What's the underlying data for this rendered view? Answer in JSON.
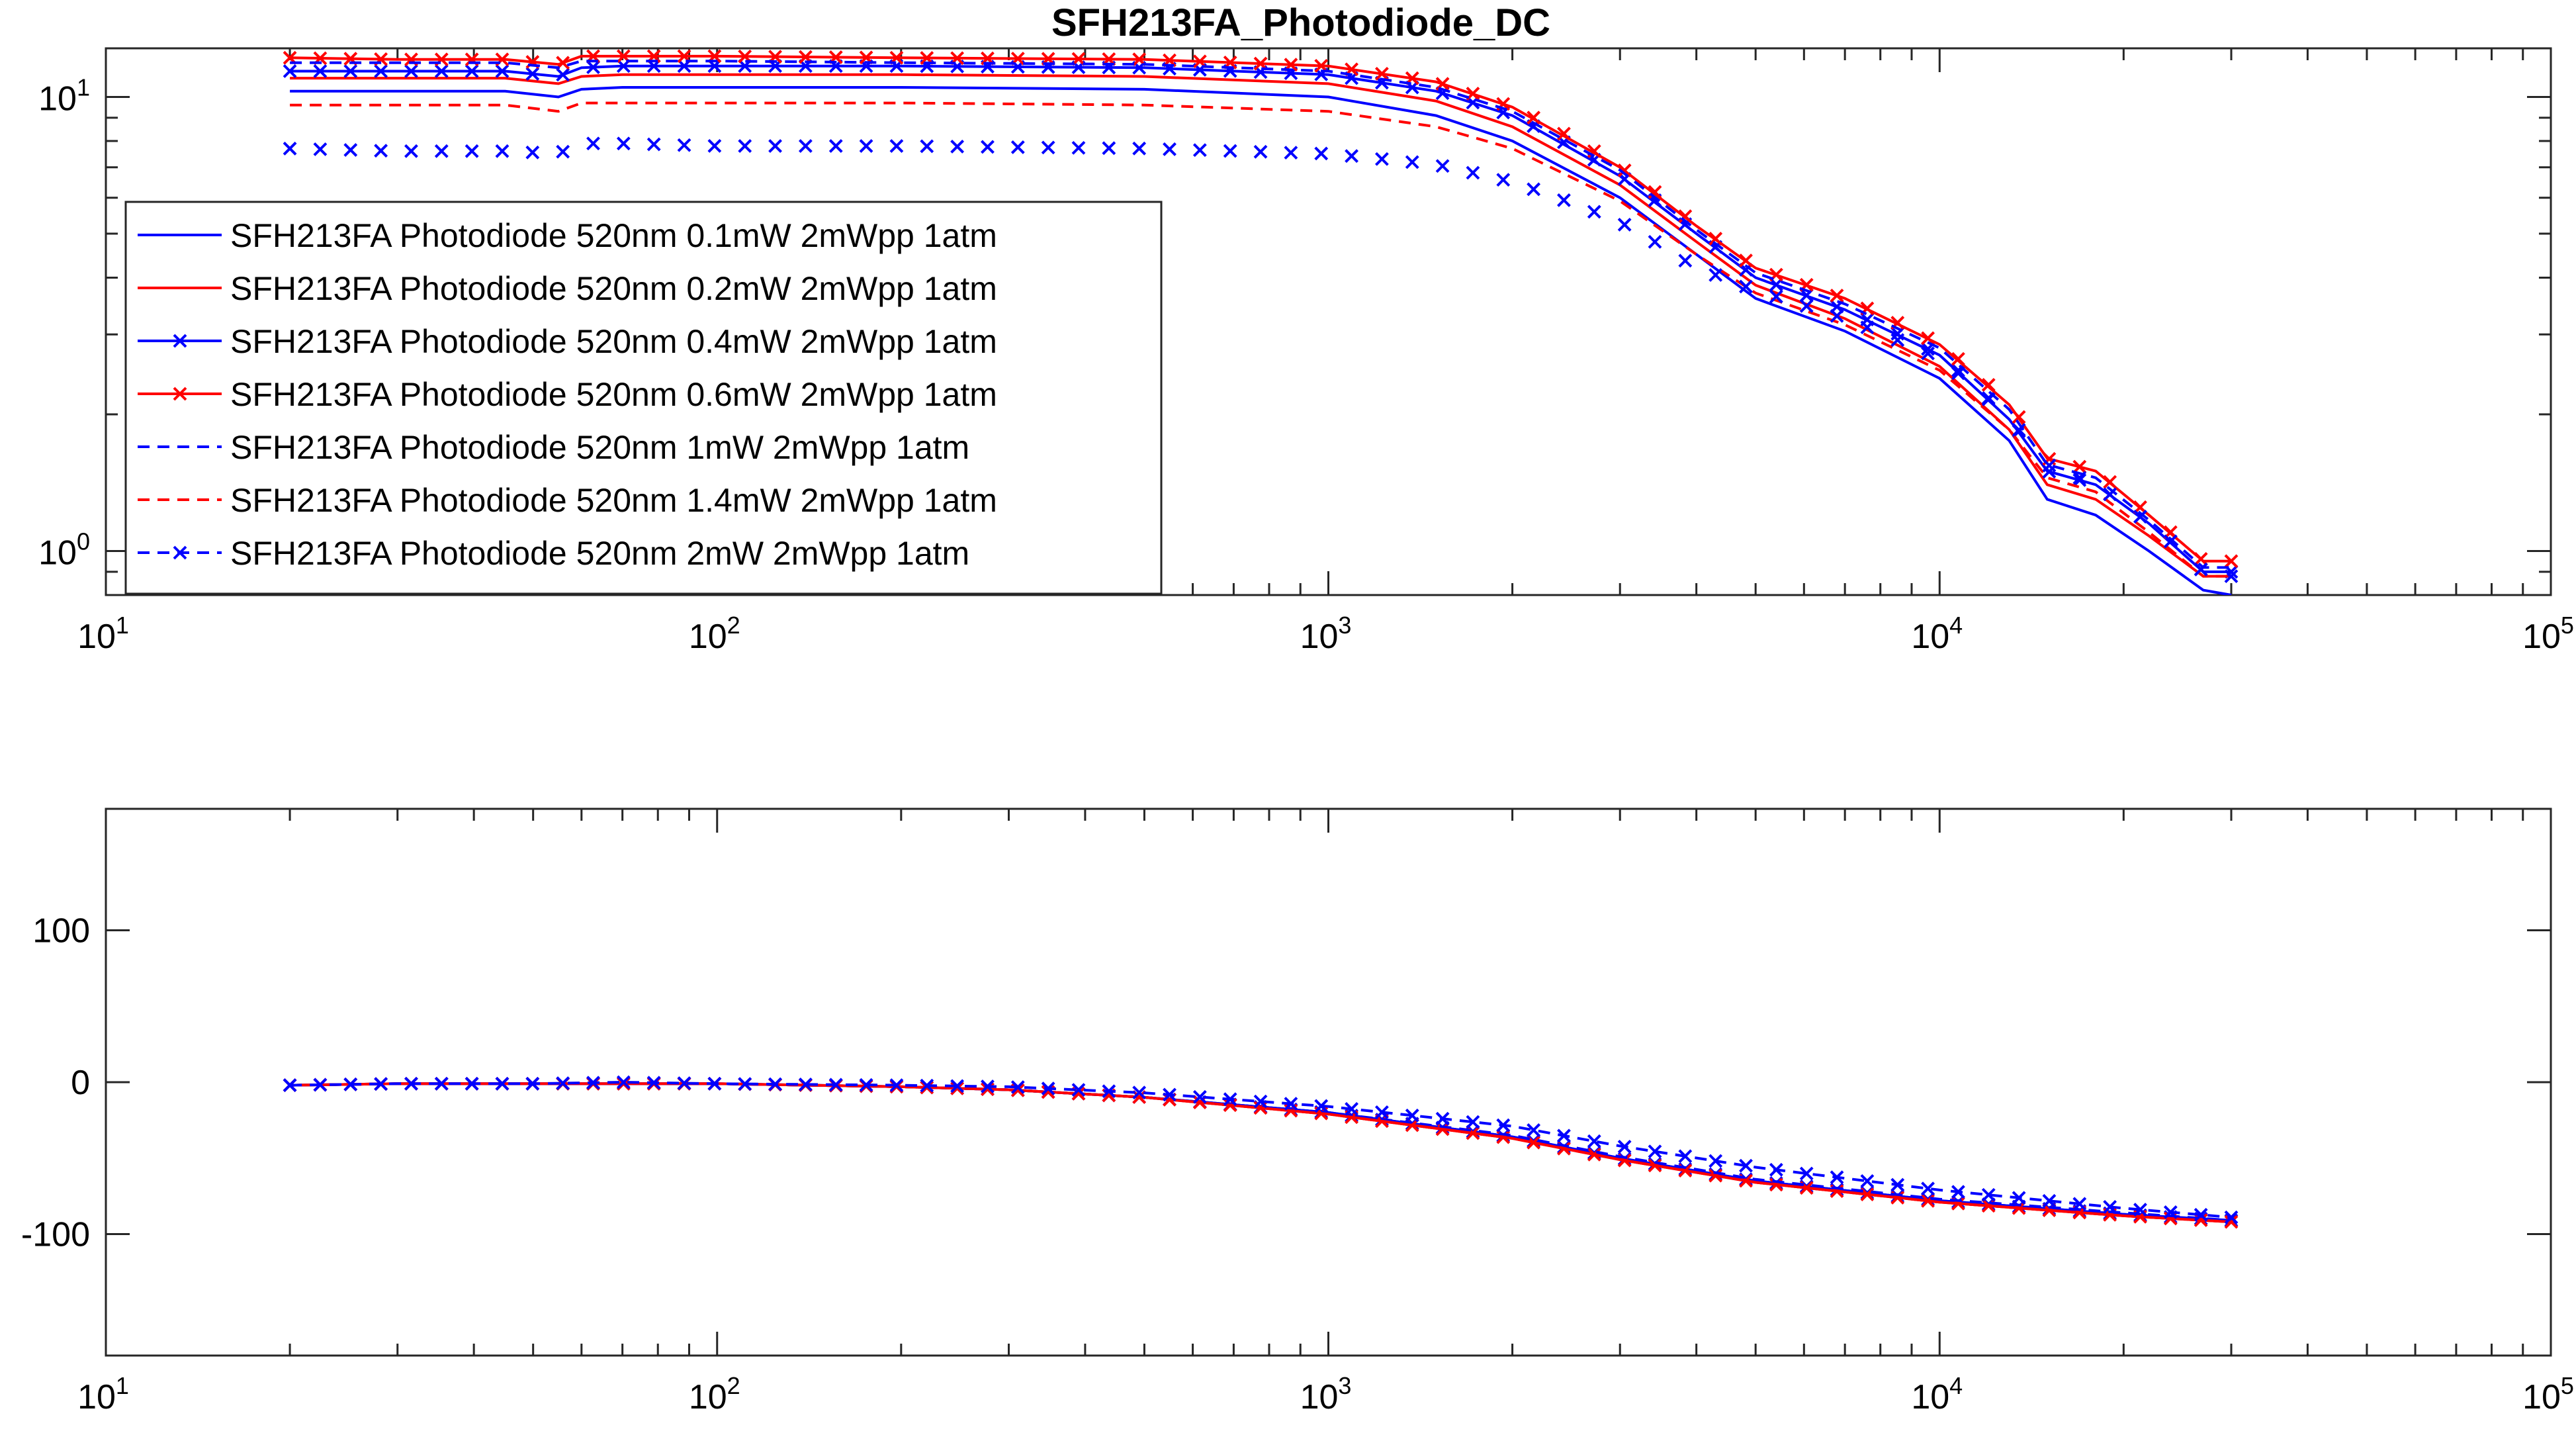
{
  "figure": {
    "title": "SFH213FA_Photodiode_DC"
  },
  "colors": {
    "blue": "#0000FF",
    "red": "#FF0000",
    "axis": "#262626"
  },
  "chart_data": [
    {
      "type": "line",
      "title": "SFH213FA_Photodiode_DC",
      "xscale": "log",
      "yscale": "log",
      "xlim": [
        10,
        100000
      ],
      "ylim": [
        0.8,
        12.8
      ],
      "x_ticks": [
        10,
        100,
        1000,
        10000,
        100000
      ],
      "x_tick_labels": [
        {
          "base": "10",
          "exp": "1"
        },
        {
          "base": "10",
          "exp": "2"
        },
        {
          "base": "10",
          "exp": "3"
        },
        {
          "base": "10",
          "exp": "4"
        },
        {
          "base": "10",
          "exp": "5"
        }
      ],
      "y_ticks": [
        1,
        10
      ],
      "y_tick_labels": [
        {
          "base": "10",
          "exp": "0"
        },
        {
          "base": "10",
          "exp": "1"
        }
      ],
      "grid": false,
      "legend_position": "left",
      "x": [
        20,
        30,
        45,
        55,
        60,
        70,
        100,
        200,
        500,
        1000,
        1500,
        2000,
        3000,
        4000,
        5000,
        7000,
        10000,
        13000,
        15000,
        18000,
        22000,
        27000,
        30000
      ],
      "series": [
        {
          "name": "SFH213FA Photodiode 520nm 0.1mW 2mWpp 1atm",
          "color": "#0000FF",
          "style": "solid",
          "marker": "none",
          "values": [
            10.3,
            10.3,
            10.3,
            10.0,
            10.4,
            10.5,
            10.5,
            10.5,
            10.4,
            10.0,
            9.1,
            8.0,
            6.0,
            4.5,
            3.6,
            3.05,
            2.4,
            1.75,
            1.3,
            1.2,
            1.0,
            0.82,
            0.8
          ]
        },
        {
          "name": "SFH213FA Photodiode 520nm 0.2mW 2mWpp 1atm",
          "color": "#FF0000",
          "style": "solid",
          "marker": "none",
          "values": [
            11.0,
            11.0,
            11.0,
            10.7,
            11.1,
            11.2,
            11.2,
            11.2,
            11.1,
            10.7,
            9.8,
            8.6,
            6.4,
            4.8,
            3.85,
            3.25,
            2.55,
            1.85,
            1.4,
            1.3,
            1.08,
            0.88,
            0.88
          ]
        },
        {
          "name": "SFH213FA Photodiode 520nm 0.4mW 2mWpp 1atm",
          "color": "#0000FF",
          "style": "solid",
          "marker": "x",
          "values": [
            11.4,
            11.4,
            11.4,
            11.1,
            11.6,
            11.7,
            11.7,
            11.7,
            11.6,
            11.2,
            10.3,
            9.1,
            6.7,
            5.0,
            4.0,
            3.4,
            2.7,
            1.95,
            1.5,
            1.4,
            1.15,
            0.9,
            0.9
          ]
        },
        {
          "name": "SFH213FA Photodiode 520nm 0.6mW 2mWpp 1atm",
          "color": "#FF0000",
          "style": "solid",
          "marker": "x",
          "values": [
            12.2,
            12.1,
            12.1,
            11.8,
            12.3,
            12.3,
            12.3,
            12.2,
            12.1,
            11.7,
            10.8,
            9.5,
            7.0,
            5.2,
            4.2,
            3.6,
            2.85,
            2.1,
            1.6,
            1.5,
            1.2,
            0.95,
            0.95
          ]
        },
        {
          "name": "SFH213FA Photodiode 520nm 1mW 2mWpp 1atm",
          "color": "#0000FF",
          "style": "dashed",
          "marker": "none",
          "values": [
            11.9,
            11.9,
            11.9,
            11.6,
            12.0,
            12.0,
            12.0,
            11.9,
            11.8,
            11.4,
            10.5,
            9.3,
            6.9,
            5.1,
            4.1,
            3.5,
            2.8,
            2.05,
            1.55,
            1.45,
            1.17,
            0.92,
            0.92
          ]
        },
        {
          "name": "SFH213FA Photodiode 520nm 1.4mW 2mWpp 1atm",
          "color": "#FF0000",
          "style": "dashed",
          "marker": "none",
          "values": [
            9.6,
            9.6,
            9.6,
            9.3,
            9.7,
            9.7,
            9.7,
            9.7,
            9.6,
            9.3,
            8.6,
            7.7,
            5.9,
            4.5,
            3.7,
            3.15,
            2.5,
            1.85,
            1.45,
            1.35,
            1.1,
            0.88,
            0.88
          ]
        },
        {
          "name": "SFH213FA Photodiode 520nm 2mW 2mWpp 1atm",
          "color": "#0000FF",
          "style": "dashed",
          "marker": "x",
          "values": [
            7.7,
            7.6,
            7.6,
            7.5,
            7.9,
            7.9,
            7.8,
            7.8,
            7.7,
            7.5,
            7.1,
            6.5,
            5.3,
            4.2,
            3.75,
            3.25,
            2.65,
            1.95,
            1.55,
            1.4,
            1.15,
            0.9,
            0.88
          ]
        }
      ]
    },
    {
      "type": "line",
      "title": "",
      "xscale": "log",
      "yscale": "linear",
      "xlim": [
        10,
        100000
      ],
      "ylim": [
        -180,
        180
      ],
      "x_ticks": [
        10,
        100,
        1000,
        10000,
        100000
      ],
      "x_tick_labels": [
        {
          "base": "10",
          "exp": "1"
        },
        {
          "base": "10",
          "exp": "2"
        },
        {
          "base": "10",
          "exp": "3"
        },
        {
          "base": "10",
          "exp": "4"
        },
        {
          "base": "10",
          "exp": "5"
        }
      ],
      "y_ticks": [
        100,
        0,
        -100
      ],
      "y_tick_labels": [
        "100",
        "0",
        "-100"
      ],
      "grid": false,
      "x": [
        20,
        30,
        50,
        70,
        100,
        200,
        300,
        500,
        1000,
        2000,
        3000,
        5000,
        10000,
        20000,
        30000
      ],
      "series": [
        {
          "name": "SFH213FA Photodiode 520nm 0.1mW 2mWpp 1atm",
          "color": "#0000FF",
          "style": "solid",
          "marker": "none",
          "values": [
            -2,
            -1,
            -1,
            -1,
            -1,
            -3,
            -5,
            -10,
            -20,
            -36,
            -50,
            -65,
            -78,
            -87,
            -92
          ]
        },
        {
          "name": "SFH213FA Photodiode 520nm 0.2mW 2mWpp 1atm",
          "color": "#FF0000",
          "style": "solid",
          "marker": "none",
          "values": [
            -2,
            -1,
            -1,
            -1,
            -1,
            -3,
            -5,
            -10,
            -21,
            -37,
            -51,
            -66,
            -79,
            -88,
            -92
          ]
        },
        {
          "name": "SFH213FA Photodiode 520nm 0.4mW 2mWpp 1atm",
          "color": "#0000FF",
          "style": "solid",
          "marker": "x",
          "values": [
            -2,
            -1,
            -1,
            -1,
            -1,
            -3,
            -5,
            -10,
            -20,
            -36,
            -50,
            -65,
            -78,
            -87,
            -91
          ]
        },
        {
          "name": "SFH213FA Photodiode 520nm 0.6mW 2mWpp 1atm",
          "color": "#FF0000",
          "style": "solid",
          "marker": "x",
          "values": [
            -2,
            -1,
            -1,
            -1,
            -1,
            -3,
            -5,
            -10,
            -21,
            -37,
            -51,
            -66,
            -79,
            -88,
            -92
          ]
        },
        {
          "name": "SFH213FA Photodiode 520nm 1mW 2mWpp 1atm",
          "color": "#0000FF",
          "style": "dashed",
          "marker": "none",
          "values": [
            -2,
            -1,
            -1,
            -1,
            -1,
            -3,
            -5,
            -10,
            -20,
            -35,
            -49,
            -64,
            -77,
            -86,
            -91
          ]
        },
        {
          "name": "SFH213FA Photodiode 520nm 1.4mW 2mWpp 1atm",
          "color": "#FF0000",
          "style": "dashed",
          "marker": "none",
          "values": [
            -2,
            -1,
            -1,
            -1,
            -1,
            -3,
            -5,
            -10,
            -21,
            -37,
            -51,
            -66,
            -79,
            -88,
            -92
          ]
        },
        {
          "name": "SFH213FA Photodiode 520nm 2mW 2mWpp 1atm",
          "color": "#0000FF",
          "style": "dashed",
          "marker": "x",
          "values": [
            -2,
            -1,
            -1,
            0,
            -1,
            -2,
            -3,
            -7,
            -16,
            -29,
            -42,
            -56,
            -71,
            -83,
            -89
          ]
        }
      ]
    }
  ]
}
